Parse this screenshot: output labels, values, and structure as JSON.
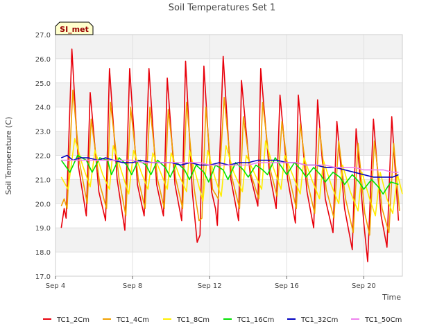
{
  "chart_data": {
    "type": "line",
    "title": "Soil Temperatures Set 1",
    "xlabel": "Time",
    "ylabel": "Soil Temperature (C)",
    "site_badge": "SI_met",
    "x_unit": "days since Sep 4",
    "xlim": [
      0,
      18
    ],
    "ylim": [
      17.0,
      27.0
    ],
    "x_ticks": [
      {
        "x": 0,
        "label": "Sep 4"
      },
      {
        "x": 4,
        "label": "Sep 8"
      },
      {
        "x": 8,
        "label": "Sep 12"
      },
      {
        "x": 12,
        "label": "Sep 16"
      },
      {
        "x": 16,
        "label": "Sep 20"
      }
    ],
    "y_ticks": [
      17.0,
      18.0,
      19.0,
      20.0,
      21.0,
      22.0,
      23.0,
      24.0,
      25.0,
      26.0,
      27.0
    ],
    "grid_bands": true,
    "legend_position": "bottom",
    "series": [
      {
        "name": "TC1_2Cm",
        "color": "#e8000b",
        "points": [
          [
            0.3,
            19.0
          ],
          [
            0.45,
            19.8
          ],
          [
            0.55,
            19.4
          ],
          [
            0.85,
            26.4
          ],
          [
            1.2,
            21.5
          ],
          [
            1.6,
            19.5
          ],
          [
            1.8,
            24.6
          ],
          [
            2.25,
            20.5
          ],
          [
            2.6,
            19.3
          ],
          [
            2.8,
            25.6
          ],
          [
            3.2,
            21.0
          ],
          [
            3.6,
            18.9
          ],
          [
            3.85,
            25.6
          ],
          [
            4.25,
            20.8
          ],
          [
            4.6,
            19.5
          ],
          [
            4.85,
            25.6
          ],
          [
            5.25,
            20.8
          ],
          [
            5.6,
            19.5
          ],
          [
            5.8,
            25.2
          ],
          [
            6.2,
            20.8
          ],
          [
            6.55,
            19.3
          ],
          [
            6.75,
            25.9
          ],
          [
            7.1,
            20.5
          ],
          [
            7.35,
            18.4
          ],
          [
            7.5,
            18.7
          ],
          [
            7.7,
            25.7
          ],
          [
            8.1,
            20.5
          ],
          [
            8.3,
            19.8
          ],
          [
            8.4,
            19.1
          ],
          [
            8.7,
            26.1
          ],
          [
            9.1,
            21.0
          ],
          [
            9.5,
            19.3
          ],
          [
            9.65,
            25.1
          ],
          [
            10.1,
            21.2
          ],
          [
            10.5,
            19.9
          ],
          [
            10.65,
            25.6
          ],
          [
            11.1,
            21.3
          ],
          [
            11.45,
            19.8
          ],
          [
            11.65,
            24.5
          ],
          [
            12.05,
            21.0
          ],
          [
            12.45,
            19.2
          ],
          [
            12.6,
            24.5
          ],
          [
            13.05,
            20.5
          ],
          [
            13.4,
            19.0
          ],
          [
            13.6,
            24.3
          ],
          [
            14.0,
            20.2
          ],
          [
            14.4,
            18.8
          ],
          [
            14.6,
            23.4
          ],
          [
            15.0,
            19.8
          ],
          [
            15.4,
            18.1
          ],
          [
            15.6,
            23.1
          ],
          [
            16.0,
            19.2
          ],
          [
            16.2,
            17.6
          ],
          [
            16.5,
            23.5
          ],
          [
            16.9,
            19.5
          ],
          [
            17.2,
            18.2
          ],
          [
            17.45,
            23.6
          ],
          [
            17.8,
            19.3
          ]
        ]
      },
      {
        "name": "TC1_4Cm",
        "color": "#f0a000",
        "points": [
          [
            0.3,
            19.9
          ],
          [
            0.45,
            20.2
          ],
          [
            0.6,
            19.8
          ],
          [
            0.9,
            24.7
          ],
          [
            1.25,
            21.7
          ],
          [
            1.65,
            20.0
          ],
          [
            1.85,
            23.5
          ],
          [
            2.3,
            20.8
          ],
          [
            2.65,
            19.8
          ],
          [
            2.85,
            24.2
          ],
          [
            3.3,
            21.0
          ],
          [
            3.65,
            19.5
          ],
          [
            3.9,
            24.0
          ],
          [
            4.3,
            21.0
          ],
          [
            4.65,
            19.8
          ],
          [
            4.9,
            24.0
          ],
          [
            5.3,
            21.0
          ],
          [
            5.65,
            19.8
          ],
          [
            5.85,
            23.9
          ],
          [
            6.25,
            21.0
          ],
          [
            6.6,
            19.8
          ],
          [
            6.8,
            24.2
          ],
          [
            7.2,
            20.6
          ],
          [
            7.45,
            19.3
          ],
          [
            7.6,
            19.4
          ],
          [
            7.8,
            24.0
          ],
          [
            8.15,
            20.6
          ],
          [
            8.45,
            20.2
          ],
          [
            8.75,
            24.4
          ],
          [
            9.15,
            21.1
          ],
          [
            9.55,
            19.8
          ],
          [
            9.75,
            23.6
          ],
          [
            10.15,
            21.2
          ],
          [
            10.55,
            20.2
          ],
          [
            10.75,
            24.2
          ],
          [
            11.15,
            21.4
          ],
          [
            11.5,
            20.3
          ],
          [
            11.75,
            23.4
          ],
          [
            12.1,
            21.2
          ],
          [
            12.5,
            19.8
          ],
          [
            12.7,
            23.3
          ],
          [
            13.1,
            20.8
          ],
          [
            13.45,
            19.6
          ],
          [
            13.7,
            23.1
          ],
          [
            14.05,
            20.6
          ],
          [
            14.45,
            19.4
          ],
          [
            14.7,
            22.6
          ],
          [
            15.05,
            20.2
          ],
          [
            15.45,
            18.8
          ],
          [
            15.7,
            22.5
          ],
          [
            16.05,
            19.6
          ],
          [
            16.3,
            18.7
          ],
          [
            16.55,
            22.6
          ],
          [
            16.95,
            19.8
          ],
          [
            17.3,
            18.8
          ],
          [
            17.55,
            22.5
          ],
          [
            17.85,
            19.7
          ]
        ]
      },
      {
        "name": "TC1_8Cm",
        "color": "#ffee00",
        "points": [
          [
            0.3,
            21.1
          ],
          [
            0.65,
            20.6
          ],
          [
            1.0,
            22.7
          ],
          [
            1.4,
            21.6
          ],
          [
            1.8,
            20.7
          ],
          [
            2.05,
            22.2
          ],
          [
            2.45,
            21.2
          ],
          [
            2.8,
            20.6
          ],
          [
            3.0,
            22.4
          ],
          [
            3.4,
            21.4
          ],
          [
            3.8,
            20.4
          ],
          [
            4.05,
            22.2
          ],
          [
            4.45,
            21.3
          ],
          [
            4.8,
            20.6
          ],
          [
            5.05,
            22.1
          ],
          [
            5.45,
            21.3
          ],
          [
            5.8,
            20.6
          ],
          [
            6.0,
            22.1
          ],
          [
            6.4,
            21.2
          ],
          [
            6.8,
            20.5
          ],
          [
            6.95,
            22.2
          ],
          [
            7.35,
            21.0
          ],
          [
            7.65,
            20.1
          ],
          [
            7.9,
            22.2
          ],
          [
            8.3,
            21.0
          ],
          [
            8.6,
            20.3
          ],
          [
            8.85,
            22.4
          ],
          [
            9.25,
            21.3
          ],
          [
            9.7,
            20.5
          ],
          [
            9.9,
            22.0
          ],
          [
            10.3,
            21.3
          ],
          [
            10.7,
            20.6
          ],
          [
            10.9,
            22.6
          ],
          [
            11.3,
            21.5
          ],
          [
            11.7,
            20.6
          ],
          [
            11.9,
            22.0
          ],
          [
            12.3,
            21.2
          ],
          [
            12.7,
            20.4
          ],
          [
            12.9,
            21.9
          ],
          [
            13.3,
            21.0
          ],
          [
            13.7,
            20.2
          ],
          [
            13.9,
            21.8
          ],
          [
            14.3,
            20.8
          ],
          [
            14.7,
            20.0
          ],
          [
            14.9,
            21.6
          ],
          [
            15.3,
            20.5
          ],
          [
            15.7,
            19.7
          ],
          [
            15.9,
            21.3
          ],
          [
            16.3,
            20.2
          ],
          [
            16.6,
            19.5
          ],
          [
            16.85,
            21.3
          ],
          [
            17.2,
            20.2
          ],
          [
            17.5,
            19.6
          ],
          [
            17.75,
            21.2
          ],
          [
            18.0,
            20.4
          ]
        ]
      },
      {
        "name": "TC1_16Cm",
        "color": "#00e000",
        "points": [
          [
            0.3,
            21.8
          ],
          [
            0.75,
            21.3
          ],
          [
            1.15,
            22.0
          ],
          [
            1.6,
            21.8
          ],
          [
            1.9,
            21.3
          ],
          [
            2.3,
            21.9
          ],
          [
            2.7,
            21.8
          ],
          [
            2.9,
            21.2
          ],
          [
            3.3,
            21.9
          ],
          [
            3.7,
            21.6
          ],
          [
            3.95,
            21.2
          ],
          [
            4.3,
            21.8
          ],
          [
            4.7,
            21.6
          ],
          [
            4.95,
            21.2
          ],
          [
            5.3,
            21.8
          ],
          [
            5.7,
            21.5
          ],
          [
            5.95,
            21.1
          ],
          [
            6.3,
            21.7
          ],
          [
            6.7,
            21.4
          ],
          [
            6.95,
            21.0
          ],
          [
            7.3,
            21.6
          ],
          [
            7.7,
            21.3
          ],
          [
            7.95,
            20.9
          ],
          [
            8.3,
            21.6
          ],
          [
            8.7,
            21.4
          ],
          [
            8.95,
            21.0
          ],
          [
            9.35,
            21.7
          ],
          [
            9.75,
            21.4
          ],
          [
            10.0,
            21.1
          ],
          [
            10.4,
            21.6
          ],
          [
            10.75,
            21.4
          ],
          [
            11.0,
            21.2
          ],
          [
            11.4,
            21.9
          ],
          [
            11.75,
            21.5
          ],
          [
            12.0,
            21.2
          ],
          [
            12.4,
            21.7
          ],
          [
            12.75,
            21.4
          ],
          [
            13.0,
            21.1
          ],
          [
            13.4,
            21.5
          ],
          [
            13.75,
            21.2
          ],
          [
            14.0,
            20.9
          ],
          [
            14.4,
            21.3
          ],
          [
            14.75,
            21.1
          ],
          [
            15.0,
            20.8
          ],
          [
            15.4,
            21.2
          ],
          [
            15.75,
            20.9
          ],
          [
            16.0,
            20.6
          ],
          [
            16.4,
            21.0
          ],
          [
            16.75,
            20.7
          ],
          [
            17.0,
            20.4
          ],
          [
            17.4,
            20.9
          ],
          [
            17.8,
            20.8
          ]
        ]
      },
      {
        "name": "TC1_32Cm",
        "color": "#0000c0",
        "points": [
          [
            0.3,
            21.9
          ],
          [
            0.6,
            22.0
          ],
          [
            0.9,
            21.8
          ],
          [
            1.3,
            21.9
          ],
          [
            1.7,
            21.9
          ],
          [
            2.2,
            21.8
          ],
          [
            2.6,
            21.9
          ],
          [
            3.0,
            21.8
          ],
          [
            3.5,
            21.7
          ],
          [
            4.0,
            21.7
          ],
          [
            4.4,
            21.8
          ],
          [
            5.0,
            21.7
          ],
          [
            5.5,
            21.7
          ],
          [
            6.0,
            21.7
          ],
          [
            6.5,
            21.6
          ],
          [
            7.0,
            21.7
          ],
          [
            7.5,
            21.6
          ],
          [
            8.0,
            21.6
          ],
          [
            8.5,
            21.7
          ],
          [
            9.0,
            21.6
          ],
          [
            9.5,
            21.7
          ],
          [
            10.0,
            21.7
          ],
          [
            10.5,
            21.8
          ],
          [
            11.0,
            21.8
          ],
          [
            11.5,
            21.8
          ],
          [
            12.0,
            21.7
          ],
          [
            12.5,
            21.7
          ],
          [
            13.0,
            21.6
          ],
          [
            13.5,
            21.6
          ],
          [
            14.0,
            21.5
          ],
          [
            14.5,
            21.5
          ],
          [
            15.0,
            21.4
          ],
          [
            15.5,
            21.3
          ],
          [
            16.0,
            21.2
          ],
          [
            16.5,
            21.1
          ],
          [
            17.0,
            21.1
          ],
          [
            17.5,
            21.1
          ],
          [
            17.8,
            21.2
          ]
        ]
      },
      {
        "name": "TC1_50Cm",
        "color": "#ee82ee",
        "points": [
          [
            0.3,
            21.8
          ],
          [
            1.0,
            21.8
          ],
          [
            1.5,
            21.8
          ],
          [
            2.0,
            21.8
          ],
          [
            2.5,
            21.8
          ],
          [
            3.0,
            21.8
          ],
          [
            3.5,
            21.8
          ],
          [
            4.0,
            21.8
          ],
          [
            4.5,
            21.7
          ],
          [
            5.0,
            21.7
          ],
          [
            5.5,
            21.7
          ],
          [
            6.0,
            21.7
          ],
          [
            6.5,
            21.7
          ],
          [
            7.0,
            21.7
          ],
          [
            7.5,
            21.7
          ],
          [
            8.0,
            21.6
          ],
          [
            8.5,
            21.6
          ],
          [
            9.0,
            21.6
          ],
          [
            9.5,
            21.6
          ],
          [
            10.0,
            21.6
          ],
          [
            10.5,
            21.7
          ],
          [
            11.0,
            21.7
          ],
          [
            11.5,
            21.7
          ],
          [
            12.0,
            21.7
          ],
          [
            12.5,
            21.7
          ],
          [
            13.0,
            21.6
          ],
          [
            13.5,
            21.6
          ],
          [
            14.0,
            21.6
          ],
          [
            14.5,
            21.5
          ],
          [
            15.0,
            21.5
          ],
          [
            15.5,
            21.5
          ],
          [
            16.0,
            21.4
          ],
          [
            16.5,
            21.4
          ],
          [
            17.0,
            21.4
          ],
          [
            17.5,
            21.3
          ],
          [
            17.8,
            21.3
          ]
        ]
      }
    ]
  }
}
